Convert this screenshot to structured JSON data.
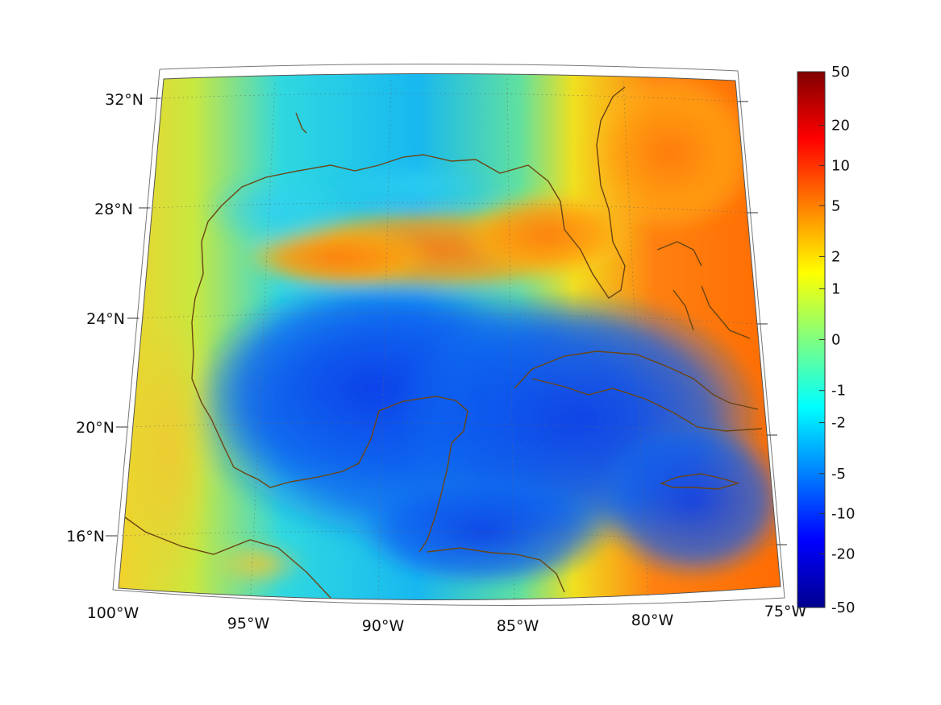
{
  "map": {
    "lat_labels": [
      {
        "text": "32°N",
        "lat": 32
      },
      {
        "text": "28°N",
        "lat": 28
      },
      {
        "text": "24°N",
        "lat": 24
      },
      {
        "text": "20°N",
        "lat": 20
      },
      {
        "text": "16°N",
        "lat": 16
      }
    ],
    "lon_labels": [
      {
        "text": "100°W",
        "lon": -100
      },
      {
        "text": "95°W",
        "lon": -95
      },
      {
        "text": "90°W",
        "lon": -90
      },
      {
        "text": "85°W",
        "lon": -85
      },
      {
        "text": "80°W",
        "lon": -80
      },
      {
        "text": "75°W",
        "lon": -75
      }
    ],
    "extent": {
      "lon": [
        -100,
        -75
      ],
      "lat": [
        14,
        33
      ]
    },
    "projection": "conic",
    "gridlines": "dotted",
    "coastline_color": "#6b4513"
  },
  "colorbar": {
    "ticks": [
      "50",
      "20",
      "10",
      "5",
      "2",
      "1",
      "0",
      "-1",
      "-2",
      "-5",
      "-10",
      "-20",
      "-50"
    ],
    "colormap": "jet",
    "range": [
      -50,
      50
    ]
  }
}
